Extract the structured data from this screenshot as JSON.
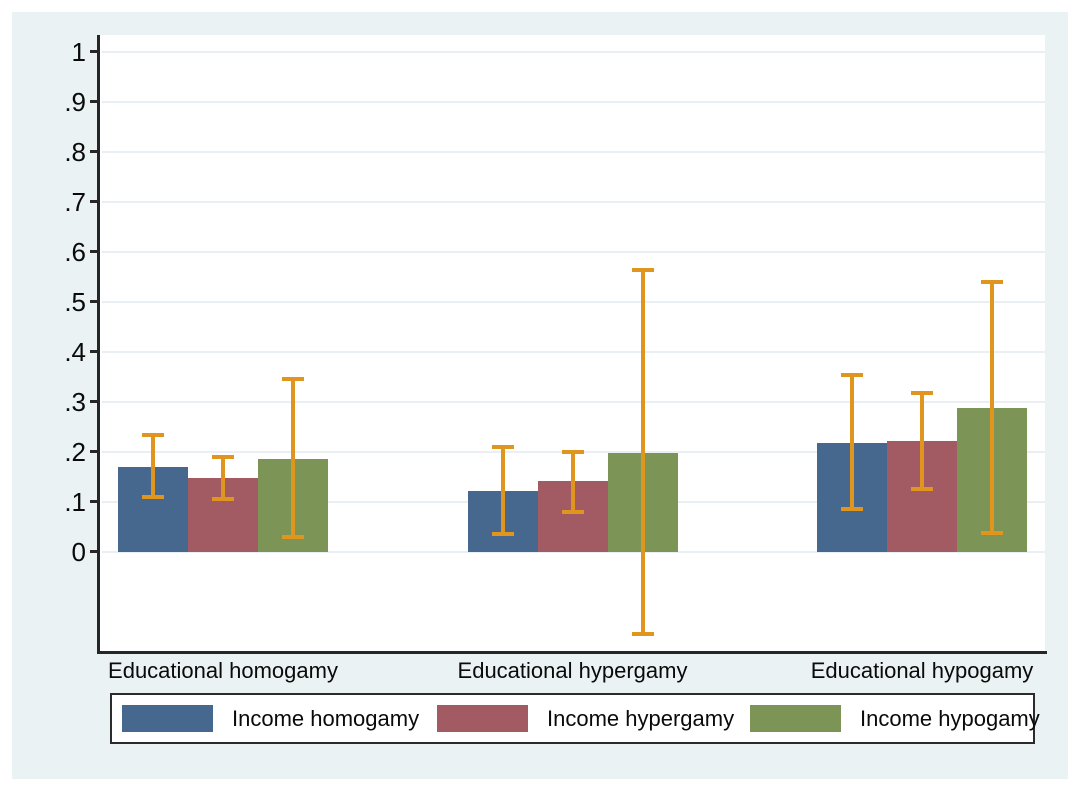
{
  "figure": {
    "background": "#eaf2f3",
    "plot_background": "#ffffff",
    "axis_color": "#262626",
    "grid_color": "#e9eff2"
  },
  "chart_data": {
    "type": "bar",
    "title": "",
    "xlabel": "",
    "ylabel": "",
    "categories": [
      "Educational homogamy",
      "Educational hypergamy",
      "Educational hypogamy"
    ],
    "series": [
      {
        "name": "Income homogamy",
        "color": "#46688f",
        "values": [
          0.17,
          0.122,
          0.218
        ],
        "ci_low": [
          0.11,
          0.035,
          0.086
        ],
        "ci_high": [
          0.234,
          0.21,
          0.353
        ]
      },
      {
        "name": "Income hypergamy",
        "color": "#a25b62",
        "values": [
          0.147,
          0.141,
          0.221
        ],
        "ci_low": [
          0.105,
          0.08,
          0.125
        ],
        "ci_high": [
          0.19,
          0.2,
          0.318
        ]
      },
      {
        "name": "Income hypogamy",
        "color": "#7c9456",
        "values": [
          0.185,
          0.197,
          0.287
        ],
        "ci_low": [
          0.03,
          -0.165,
          0.037
        ],
        "ci_high": [
          0.345,
          0.563,
          0.54
        ]
      }
    ],
    "error_bars": {
      "color": "#e0951e",
      "style": "capped-whisker"
    },
    "y_axis": {
      "tick_labels": [
        "1",
        ".9",
        ".8",
        ".7",
        ".6",
        ".5",
        ".4",
        ".3",
        ".2",
        ".1",
        "0"
      ],
      "tick_values": [
        1,
        0.9,
        0.8,
        0.7,
        0.6,
        0.5,
        0.4,
        0.3,
        0.2,
        0.1,
        0
      ],
      "range": [
        -0.2,
        1.033
      ]
    },
    "grid": true,
    "legend": {
      "position": "bottom"
    }
  }
}
